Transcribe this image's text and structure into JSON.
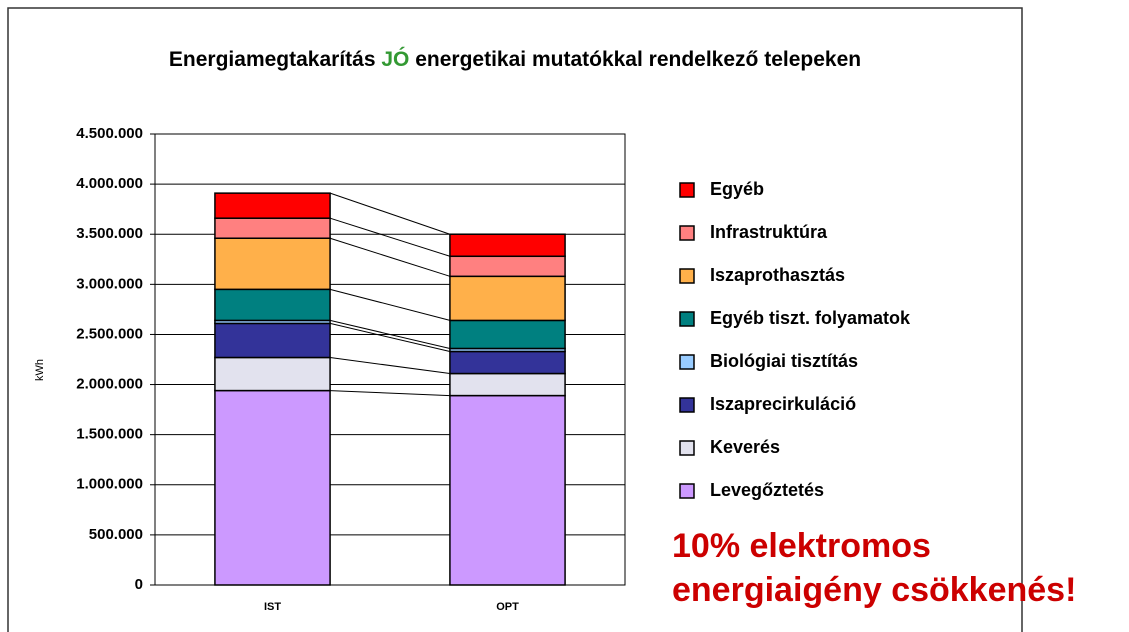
{
  "chart_data": {
    "type": "stacked_bar",
    "title": {
      "before": "Energiamegtakarítás",
      "highlight": "JÓ",
      "after": "energetikai mutatókkal rendelkező telepeken"
    },
    "y_label": "kWh",
    "categories": [
      "IST",
      "OPT"
    ],
    "series": [
      {
        "name": "Levegőztetés",
        "color": "#cc99ff",
        "values": [
          1940000,
          1890000
        ]
      },
      {
        "name": "Keverés",
        "color": "#e2e2ee",
        "values": [
          330000,
          220000
        ]
      },
      {
        "name": "Iszaprecirkuláció",
        "color": "#333399",
        "values": [
          340000,
          220000
        ]
      },
      {
        "name": "Biológiai tisztítás",
        "color": "#99ccff",
        "values": [
          30000,
          30000
        ]
      },
      {
        "name": "Egyéb tiszt. folyamatok",
        "color": "#008080",
        "values": [
          310000,
          280000
        ]
      },
      {
        "name": "Iszaprothasztás",
        "color": "#ffb04a",
        "values": [
          510000,
          440000
        ]
      },
      {
        "name": "Infrastruktúra",
        "color": "#ff8080",
        "values": [
          200000,
          200000
        ]
      },
      {
        "name": "Egyéb",
        "color": "#ff0000",
        "values": [
          250000,
          220000
        ]
      }
    ],
    "ylim": [
      0,
      4500000
    ],
    "yticks": [
      0,
      {
        "value": 500000,
        "label": "500.000"
      },
      {
        "value": 1000000,
        "label": "1.000.000"
      },
      {
        "value": 1500000,
        "label": "1.500.000"
      },
      {
        "value": 2000000,
        "label": "2.000.000"
      },
      {
        "value": 2500000,
        "label": "2.500.000"
      },
      {
        "value": 3000000,
        "label": "3.000.000"
      },
      {
        "value": 3500000,
        "label": "3.500.000"
      },
      {
        "value": 4000000,
        "label": "4.000.000"
      },
      {
        "value": 4500000,
        "label": "4.500.000"
      }
    ],
    "grid": true,
    "annotation": [
      "10% elektromos",
      "energiaigény csökkenés!"
    ]
  }
}
